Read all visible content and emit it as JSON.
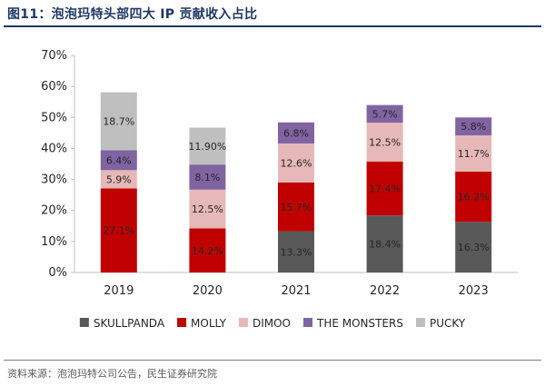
{
  "header": {
    "title": "图11：泡泡玛特头部四大 IP 贡献收入占比"
  },
  "footer": {
    "source": "资料来源：泡泡玛特公司公告，民生证券研究院"
  },
  "colors": {
    "SKULLPANDA": "#595959",
    "MOLLY": "#c00000",
    "DIMOO": "#e6b8b7",
    "THE MONSTERS": "#8064a2",
    "PUCKY": "#bfbfbf"
  },
  "chart_data": {
    "type": "bar",
    "stacked": true,
    "title": "",
    "xlabel": "",
    "ylabel": "",
    "categories": [
      "2019",
      "2020",
      "2021",
      "2022",
      "2023"
    ],
    "ylim": [
      0,
      70
    ],
    "yticks": [
      "0%",
      "10%",
      "20%",
      "30%",
      "40%",
      "50%",
      "60%",
      "70%"
    ],
    "legend_position": "bottom",
    "grid": false,
    "series": [
      {
        "name": "SKULLPANDA",
        "values": [
          null,
          null,
          13.3,
          18.4,
          16.3
        ],
        "labels": [
          "",
          "",
          "13.3%",
          "18.4%",
          "16.3%"
        ]
      },
      {
        "name": "MOLLY",
        "values": [
          27.1,
          14.2,
          15.7,
          17.4,
          16.2
        ],
        "labels": [
          "27.1%",
          "14.2%",
          "15.7%",
          "17.4%",
          "16.2%"
        ]
      },
      {
        "name": "DIMOO",
        "values": [
          5.9,
          12.5,
          12.6,
          12.5,
          11.7
        ],
        "labels": [
          "5.9%",
          "12.5%",
          "12.6%",
          "12.5%",
          "11.7%"
        ]
      },
      {
        "name": "THE MONSTERS",
        "values": [
          6.4,
          8.1,
          6.8,
          5.7,
          5.8
        ],
        "labels": [
          "6.4%",
          "8.1%",
          "6.8%",
          "5.7%",
          "5.8%"
        ]
      },
      {
        "name": "PUCKY",
        "values": [
          18.7,
          11.9,
          null,
          null,
          null
        ],
        "labels": [
          "18.7%",
          "11.90%",
          "",
          "",
          ""
        ]
      }
    ]
  }
}
